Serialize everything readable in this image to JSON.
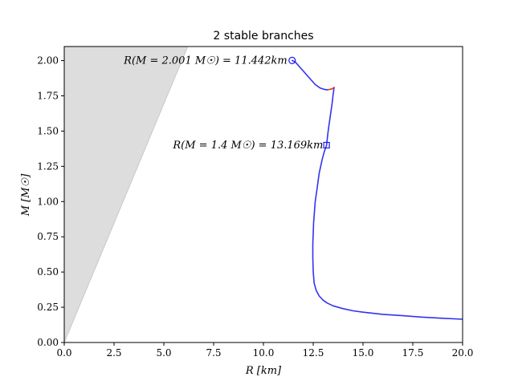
{
  "chart_data": {
    "type": "line",
    "title": "2 stable branches",
    "xlabel": "R [km]",
    "ylabel": "M [M☉]",
    "xlim": [
      0,
      20
    ],
    "ylim": [
      0,
      2.1
    ],
    "grid": false,
    "x_ticks": [
      "0.0",
      "2.5",
      "5.0",
      "7.5",
      "10.0",
      "12.5",
      "15.0",
      "17.5",
      "20.0"
    ],
    "y_ticks": [
      "0.00",
      "0.25",
      "0.50",
      "0.75",
      "1.00",
      "1.25",
      "1.50",
      "1.75",
      "2.00"
    ],
    "series": [
      {
        "color": "#3333ee",
        "x": [
          20.0,
          19.0,
          18.0,
          17.0,
          16.0,
          15.0,
          14.5,
          14.0,
          13.5,
          13.2,
          13.0,
          12.8,
          12.65,
          12.55,
          12.5,
          12.48,
          12.48,
          12.52,
          12.6,
          12.7,
          12.8,
          12.95,
          13.05,
          13.17,
          13.25,
          13.35,
          13.45,
          13.5,
          13.55
        ],
        "y": [
          0.165,
          0.172,
          0.18,
          0.19,
          0.2,
          0.215,
          0.225,
          0.24,
          0.26,
          0.28,
          0.3,
          0.33,
          0.37,
          0.42,
          0.5,
          0.6,
          0.7,
          0.85,
          1.0,
          1.1,
          1.2,
          1.3,
          1.35,
          1.4,
          1.5,
          1.6,
          1.7,
          1.76,
          1.81
        ]
      },
      {
        "color": "#dd3333",
        "x": [
          13.55,
          13.45,
          13.3,
          13.2
        ],
        "y": [
          1.81,
          1.8,
          1.795,
          1.793
        ]
      },
      {
        "color": "#3333ee",
        "x": [
          13.2,
          13.05,
          12.85,
          12.6,
          12.35,
          12.1,
          11.85,
          11.6,
          11.442
        ],
        "y": [
          1.793,
          1.796,
          1.805,
          1.83,
          1.87,
          1.91,
          1.95,
          1.99,
          2.001
        ]
      }
    ],
    "shaded_region": {
      "color": "#dddddd",
      "polygon": [
        [
          0,
          0
        ],
        [
          6.2,
          2.1
        ],
        [
          0,
          2.1
        ]
      ]
    },
    "markers": [
      {
        "shape": "circle",
        "x": 11.442,
        "y": 2.001,
        "color": "#1a1aee"
      },
      {
        "shape": "square",
        "x": 13.169,
        "y": 1.4,
        "color": "#1a1aee"
      }
    ],
    "annotations": [
      {
        "text": "R(M = 2.001 M☉) = 11.442km",
        "x": 11.2,
        "y": 2.001
      },
      {
        "text": "R(M = 1.4 M☉) = 13.169km",
        "x": 13.0,
        "y": 1.4
      }
    ]
  }
}
